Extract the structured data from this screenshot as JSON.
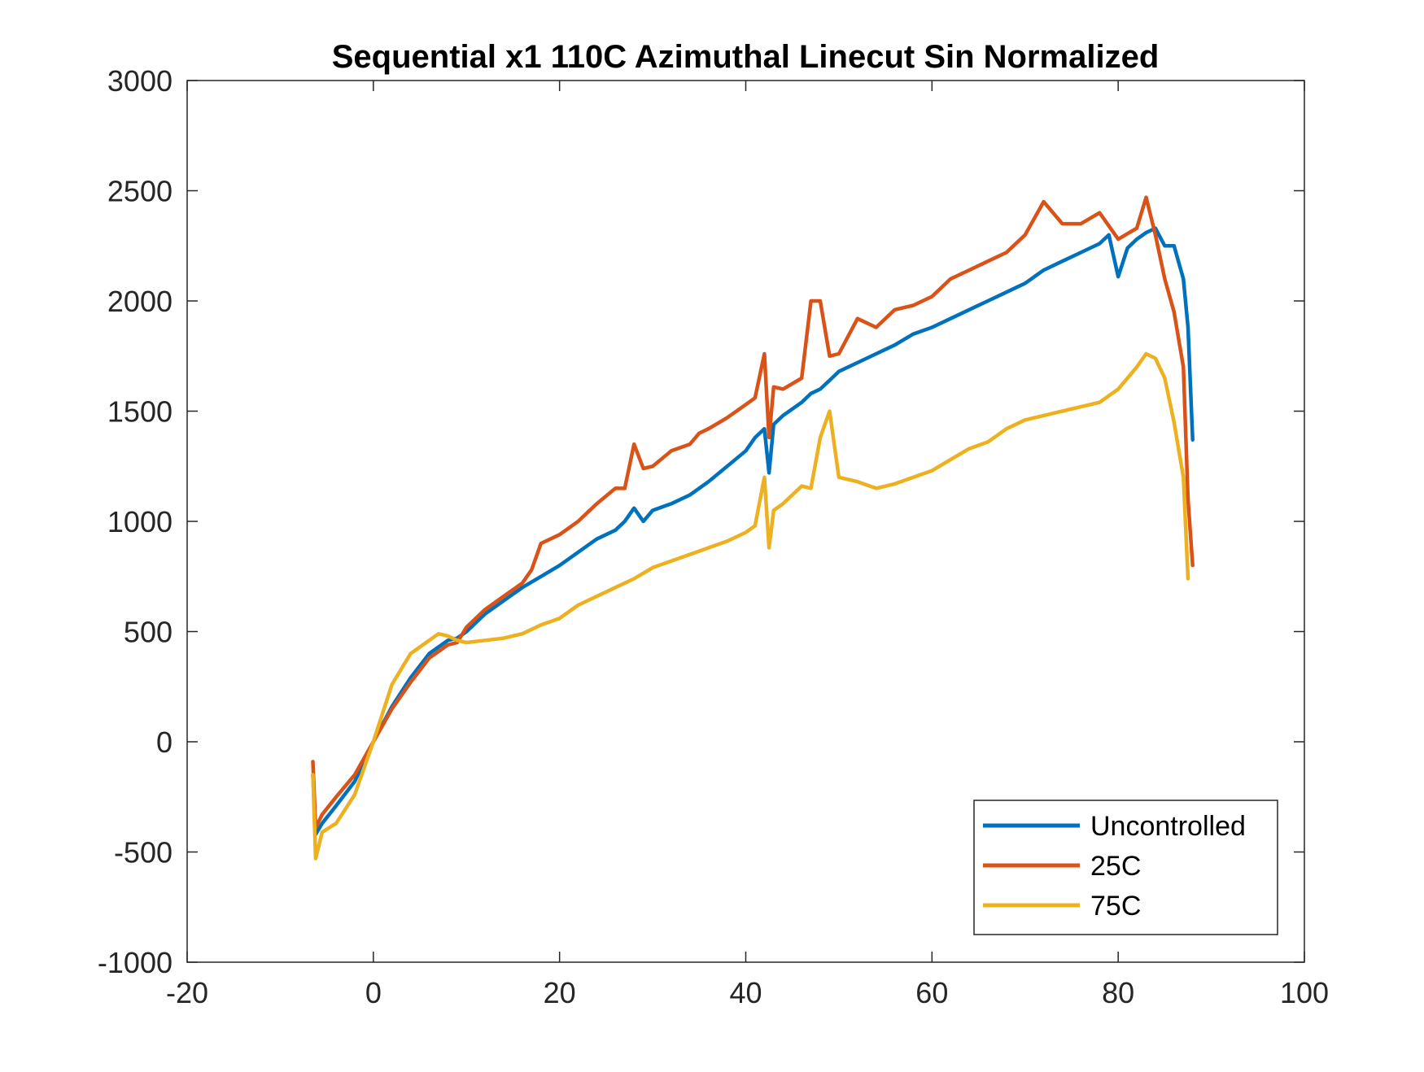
{
  "chart_data": {
    "type": "line",
    "title": "Sequential x1 110C Azimuthal Linecut Sin Normalized",
    "xlabel": "",
    "ylabel": "",
    "xlim": [
      -20,
      100
    ],
    "ylim": [
      -1000,
      3000
    ],
    "xticks": [
      -20,
      0,
      20,
      40,
      60,
      80,
      100
    ],
    "xtick_labels": [
      "-20",
      "0",
      "20",
      "40",
      "60",
      "80",
      "100"
    ],
    "yticks": [
      -1000,
      -500,
      0,
      500,
      1000,
      1500,
      2000,
      2500,
      3000
    ],
    "ytick_labels": [
      "-1000",
      "-500",
      "0",
      "500",
      "1000",
      "1500",
      "2000",
      "2500",
      "3000"
    ],
    "grid": false,
    "legend_position": "bottom-right",
    "series": [
      {
        "name": "Uncontrolled",
        "color": "#0072BD",
        "points": [
          [
            -6.5,
            -150
          ],
          [
            -6.2,
            -420
          ],
          [
            -5.5,
            -370
          ],
          [
            -4,
            -290
          ],
          [
            -2,
            -180
          ],
          [
            0,
            0
          ],
          [
            2,
            160
          ],
          [
            4,
            290
          ],
          [
            6,
            400
          ],
          [
            8,
            460
          ],
          [
            9,
            470
          ],
          [
            10,
            500
          ],
          [
            12,
            580
          ],
          [
            14,
            640
          ],
          [
            16,
            700
          ],
          [
            18,
            750
          ],
          [
            20,
            800
          ],
          [
            22,
            860
          ],
          [
            24,
            920
          ],
          [
            26,
            960
          ],
          [
            27,
            1000
          ],
          [
            28,
            1060
          ],
          [
            29,
            1000
          ],
          [
            30,
            1050
          ],
          [
            32,
            1080
          ],
          [
            34,
            1120
          ],
          [
            36,
            1180
          ],
          [
            38,
            1250
          ],
          [
            40,
            1320
          ],
          [
            41,
            1380
          ],
          [
            42,
            1420
          ],
          [
            42.5,
            1220
          ],
          [
            43,
            1440
          ],
          [
            44,
            1480
          ],
          [
            46,
            1540
          ],
          [
            47,
            1580
          ],
          [
            48,
            1600
          ],
          [
            49,
            1640
          ],
          [
            50,
            1680
          ],
          [
            52,
            1720
          ],
          [
            54,
            1760
          ],
          [
            56,
            1800
          ],
          [
            58,
            1850
          ],
          [
            60,
            1880
          ],
          [
            62,
            1920
          ],
          [
            64,
            1960
          ],
          [
            66,
            2000
          ],
          [
            68,
            2040
          ],
          [
            70,
            2080
          ],
          [
            72,
            2140
          ],
          [
            74,
            2180
          ],
          [
            76,
            2220
          ],
          [
            78,
            2260
          ],
          [
            79,
            2300
          ],
          [
            80,
            2110
          ],
          [
            81,
            2240
          ],
          [
            82,
            2280
          ],
          [
            83,
            2310
          ],
          [
            84,
            2330
          ],
          [
            85,
            2250
          ],
          [
            86,
            2250
          ],
          [
            87,
            2100
          ],
          [
            87.5,
            1880
          ],
          [
            88,
            1370
          ]
        ]
      },
      {
        "name": "25C",
        "color": "#D95319",
        "points": [
          [
            -6.5,
            -90
          ],
          [
            -6.2,
            -390
          ],
          [
            -5.5,
            -330
          ],
          [
            -4,
            -250
          ],
          [
            -2,
            -150
          ],
          [
            0,
            0
          ],
          [
            2,
            150
          ],
          [
            4,
            270
          ],
          [
            6,
            380
          ],
          [
            8,
            440
          ],
          [
            9,
            450
          ],
          [
            10,
            520
          ],
          [
            12,
            600
          ],
          [
            14,
            660
          ],
          [
            16,
            720
          ],
          [
            17,
            780
          ],
          [
            18,
            900
          ],
          [
            20,
            940
          ],
          [
            22,
            1000
          ],
          [
            24,
            1080
          ],
          [
            26,
            1150
          ],
          [
            27,
            1150
          ],
          [
            28,
            1350
          ],
          [
            29,
            1240
          ],
          [
            30,
            1250
          ],
          [
            32,
            1320
          ],
          [
            34,
            1350
          ],
          [
            35,
            1400
          ],
          [
            36,
            1420
          ],
          [
            38,
            1470
          ],
          [
            40,
            1530
          ],
          [
            41,
            1560
          ],
          [
            42,
            1760
          ],
          [
            42.5,
            1380
          ],
          [
            43,
            1610
          ],
          [
            44,
            1600
          ],
          [
            46,
            1650
          ],
          [
            47,
            2000
          ],
          [
            48,
            2000
          ],
          [
            49,
            1750
          ],
          [
            50,
            1760
          ],
          [
            52,
            1920
          ],
          [
            54,
            1880
          ],
          [
            56,
            1960
          ],
          [
            58,
            1980
          ],
          [
            60,
            2020
          ],
          [
            62,
            2100
          ],
          [
            64,
            2140
          ],
          [
            66,
            2180
          ],
          [
            68,
            2220
          ],
          [
            70,
            2300
          ],
          [
            72,
            2450
          ],
          [
            74,
            2350
          ],
          [
            76,
            2350
          ],
          [
            78,
            2400
          ],
          [
            80,
            2280
          ],
          [
            82,
            2330
          ],
          [
            83,
            2470
          ],
          [
            84,
            2300
          ],
          [
            85,
            2100
          ],
          [
            86,
            1950
          ],
          [
            87,
            1700
          ],
          [
            87.5,
            1100
          ],
          [
            88,
            800
          ]
        ]
      },
      {
        "name": "75C",
        "color": "#EDB120",
        "points": [
          [
            -6.5,
            -150
          ],
          [
            -6.2,
            -530
          ],
          [
            -5.5,
            -410
          ],
          [
            -4,
            -370
          ],
          [
            -2,
            -240
          ],
          [
            0,
            0
          ],
          [
            2,
            260
          ],
          [
            4,
            400
          ],
          [
            6,
            460
          ],
          [
            7,
            490
          ],
          [
            8,
            480
          ],
          [
            9,
            460
          ],
          [
            10,
            450
          ],
          [
            12,
            460
          ],
          [
            14,
            470
          ],
          [
            16,
            490
          ],
          [
            18,
            530
          ],
          [
            20,
            560
          ],
          [
            22,
            620
          ],
          [
            24,
            660
          ],
          [
            26,
            700
          ],
          [
            28,
            740
          ],
          [
            30,
            790
          ],
          [
            32,
            820
          ],
          [
            34,
            850
          ],
          [
            36,
            880
          ],
          [
            38,
            910
          ],
          [
            40,
            950
          ],
          [
            41,
            980
          ],
          [
            42,
            1200
          ],
          [
            42.5,
            880
          ],
          [
            43,
            1050
          ],
          [
            44,
            1080
          ],
          [
            46,
            1160
          ],
          [
            47,
            1150
          ],
          [
            48,
            1380
          ],
          [
            49,
            1500
          ],
          [
            50,
            1200
          ],
          [
            52,
            1180
          ],
          [
            54,
            1150
          ],
          [
            56,
            1170
          ],
          [
            58,
            1200
          ],
          [
            60,
            1230
          ],
          [
            62,
            1280
          ],
          [
            64,
            1330
          ],
          [
            66,
            1360
          ],
          [
            68,
            1420
          ],
          [
            70,
            1460
          ],
          [
            72,
            1480
          ],
          [
            74,
            1500
          ],
          [
            76,
            1520
          ],
          [
            78,
            1540
          ],
          [
            80,
            1600
          ],
          [
            82,
            1700
          ],
          [
            83,
            1760
          ],
          [
            84,
            1740
          ],
          [
            85,
            1650
          ],
          [
            86,
            1450
          ],
          [
            87,
            1200
          ],
          [
            87.5,
            740
          ]
        ]
      }
    ]
  }
}
